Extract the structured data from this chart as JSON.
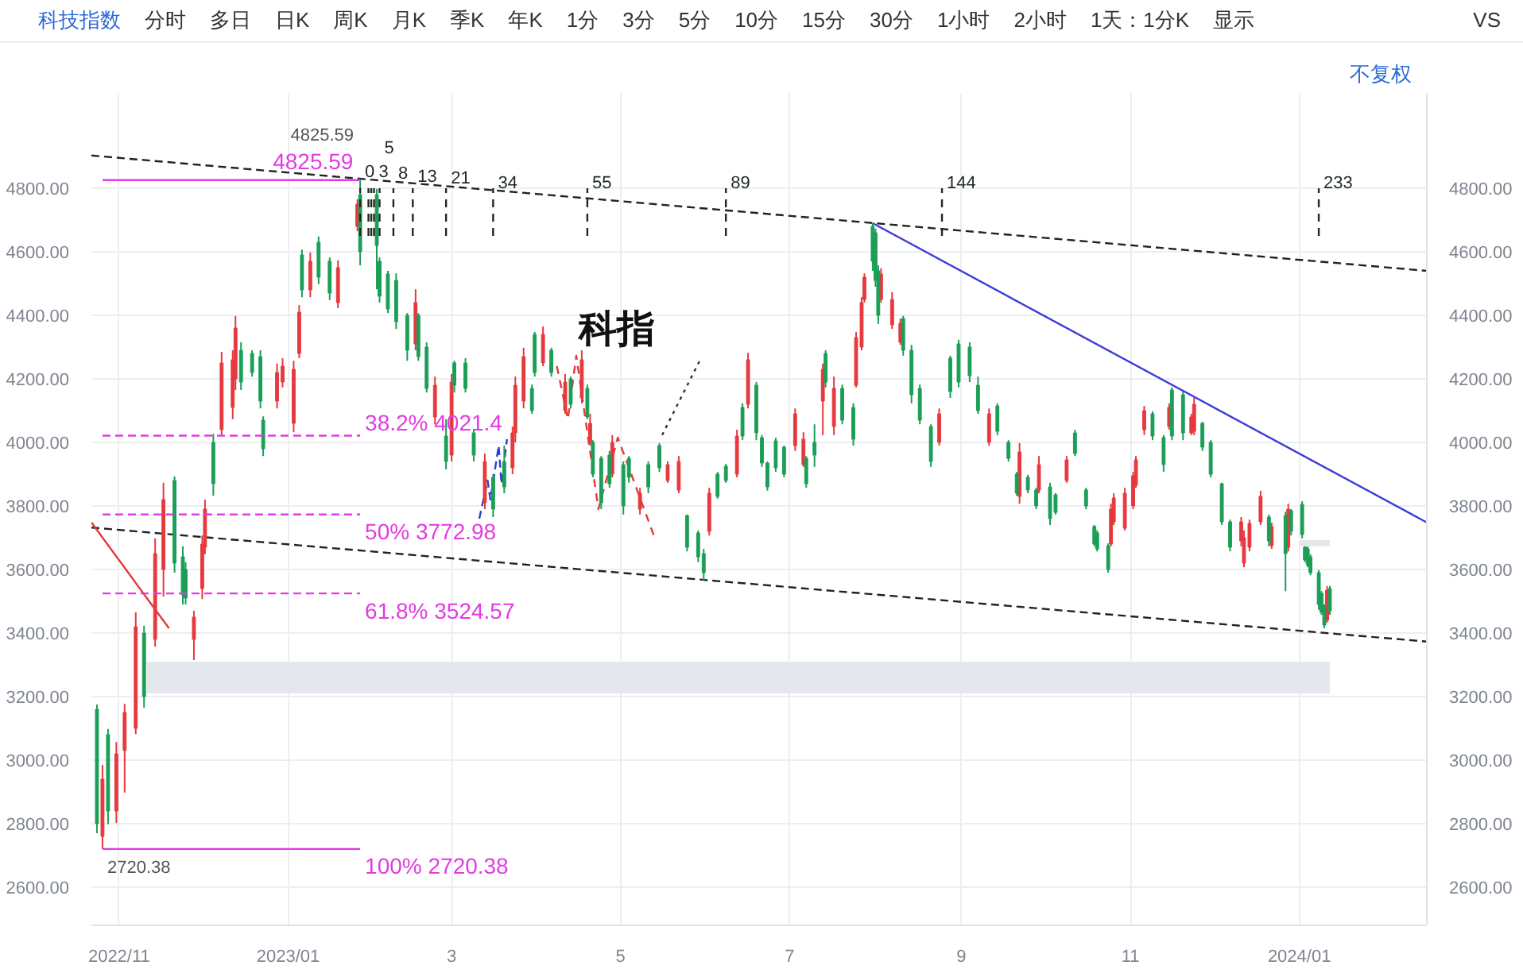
{
  "chart_data": [
    {
      "type": "other",
      "title": "科技指数",
      "annotations": [
        "分时",
        "多日",
        "日K",
        "周K",
        "月K",
        "季K",
        "年K",
        "1分",
        "3分",
        "5分",
        "10分",
        "15分",
        "30分",
        "1小时",
        "2小时",
        "1天：1分K",
        "显示",
        "VS",
        "不复权"
      ]
    },
    {
      "type": "candlestick",
      "xlim": [
        "2022-10-22",
        "2024-02-16"
      ],
      "xticks": [
        {
          "value": "2022-11-01",
          "label": "2022/11"
        },
        {
          "value": "2023-01-01",
          "label": "2023/01"
        },
        {
          "value": "2023-03-01",
          "label": "3"
        },
        {
          "value": "2023-05-01",
          "label": "5"
        },
        {
          "value": "2023-07-01",
          "label": "7"
        },
        {
          "value": "2023-09-01",
          "label": "9"
        },
        {
          "value": "2023-11-01",
          "label": "11"
        },
        {
          "value": "2024-01-01",
          "label": "2024/01"
        }
      ],
      "ylim": [
        2480,
        5100
      ],
      "yticks": [
        {
          "value": 2600,
          "label": "2600.00"
        },
        {
          "value": 2800,
          "label": "2800.00"
        },
        {
          "value": 3000,
          "label": "3000.00"
        },
        {
          "value": 3200,
          "label": "3200.00"
        },
        {
          "value": 3400,
          "label": "3400.00"
        },
        {
          "value": 3600,
          "label": "3600.00"
        },
        {
          "value": 3800,
          "label": "3800.00"
        },
        {
          "value": 4000,
          "label": "4000.00"
        },
        {
          "value": 4200,
          "label": "4200.00"
        },
        {
          "value": 4400,
          "label": "4400.00"
        },
        {
          "value": 4600,
          "label": "4600.00"
        },
        {
          "value": 4800,
          "label": "4800.00"
        }
      ],
      "y2lim": [
        2480,
        5100
      ],
      "y2ticks": [
        {
          "value": 2600,
          "label": "2600.00"
        },
        {
          "value": 2800,
          "label": "2800.00"
        },
        {
          "value": 3000,
          "label": "3000.00"
        },
        {
          "value": 3200,
          "label": "3200.00"
        },
        {
          "value": 3400,
          "label": "3400.00"
        },
        {
          "value": 3600,
          "label": "3600.00"
        },
        {
          "value": 3800,
          "label": "3800.00"
        },
        {
          "value": 4000,
          "label": "4000.00"
        },
        {
          "value": 4200,
          "label": "4200.00"
        },
        {
          "value": 4400,
          "label": "4400.00"
        },
        {
          "value": 4600,
          "label": "4600.00"
        },
        {
          "value": 4800,
          "label": "4800.00"
        }
      ],
      "grid": true,
      "annotations": [
        "科指",
        {
          "text": "4825.59",
          "x": "2023-01-27",
          "y": 4825.59
        },
        {
          "text": "2720.38",
          "x": "2022-10-26",
          "y": 2720.38
        }
      ],
      "series": [
        {
          "type": "line",
          "x": [
            "2022-11-11",
            "2024-01-12"
          ],
          "values": [
            null,
            null
          ],
          "lower": [
            3210,
            3210
          ],
          "upper": [
            3310,
            3310
          ],
          "color": "#e4e7ec"
        },
        {
          "type": "line",
          "x": [
            "2024-01-01",
            "2024-01-12"
          ],
          "values": [
            null,
            null
          ],
          "lower": [
            3673,
            3673
          ],
          "upper": [
            3693,
            3693
          ],
          "color": "#e4e7ec"
        },
        {
          "type": "line",
          "x": [
            "2022-10-22",
            "2024-02-16"
          ],
          "values": [
            4903,
            4540
          ],
          "color": "#222222",
          "line_style": "dashed"
        },
        {
          "type": "line",
          "x": [
            "2022-10-22",
            "2024-02-16"
          ],
          "values": [
            3732,
            3373
          ],
          "color": "#222222",
          "line_style": "dashed"
        },
        {
          "type": "line",
          "x": [
            "2023-07-31",
            "2024-02-16"
          ],
          "values": [
            4690,
            3748
          ],
          "color": "#3b3bd9",
          "line_style": "solid"
        },
        {
          "type": "line",
          "x": [
            "2022-10-22",
            "2022-11-19"
          ],
          "values": [
            3748,
            3415
          ],
          "color": "#e53935",
          "line_style": "solid"
        },
        {
          "type": "line",
          "x": [
            "2023-03-11",
            "2023-03-14",
            "2023-03-15",
            "2023-03-18",
            "2023-03-19",
            "2023-03-21"
          ],
          "values": [
            3760,
            3880,
            3820,
            3990,
            3870,
            4010
          ],
          "color": "#2b3fd1",
          "line_style": "dashed"
        },
        {
          "type": "line",
          "x": [
            "2023-04-08",
            "2023-04-12",
            "2023-04-15",
            "2023-04-23",
            "2023-04-30",
            "2023-05-13"
          ],
          "values": [
            4240,
            4073,
            4273,
            3790,
            4015,
            3707
          ],
          "color": "#e53935",
          "line_style": "dashed"
        },
        {
          "type": "line",
          "x": [
            "2023-05-16",
            "2023-05-30"
          ],
          "values": [
            4023,
            4265
          ],
          "color": "#333333",
          "line_style": "dotted"
        },
        {
          "type": "candlestick",
          "color": "#e6393e",
          "x": [
            "2022-10-26",
            "2022-10-31",
            "2022-11-03",
            "2022-11-07",
            "2022-11-14",
            "2022-11-17",
            "2022-11-28",
            "2022-12-01",
            "2022-12-02",
            "2022-12-08",
            "2022-12-12",
            "2022-12-13",
            "2022-12-28",
            "2022-12-30",
            "2023-01-03",
            "2023-01-05",
            "2023-01-09",
            "2023-01-19",
            "2023-01-26",
            "2023-02-16",
            "2023-02-23",
            "2023-03-01",
            "2023-03-13",
            "2023-03-23",
            "2023-03-24",
            "2023-03-27",
            "2023-04-03",
            "2023-04-11",
            "2023-04-17",
            "2023-04-20",
            "2023-04-28",
            "2023-05-08",
            "2023-05-18",
            "2023-05-22",
            "2023-06-02",
            "2023-06-12",
            "2023-06-16",
            "2023-07-03",
            "2023-07-06",
            "2023-07-13",
            "2023-07-17",
            "2023-07-25",
            "2023-07-27",
            "2023-07-28",
            "2023-08-03",
            "2023-08-07",
            "2023-08-10",
            "2023-08-24",
            "2023-09-11",
            "2023-09-22",
            "2023-09-29",
            "2023-10-09",
            "2023-10-25",
            "2023-10-26",
            "2023-10-30",
            "2023-11-02",
            "2023-11-03",
            "2023-11-06",
            "2023-11-15",
            "2023-11-23",
            "2023-11-24",
            "2023-12-11",
            "2023-12-12",
            "2023-12-14",
            "2023-12-18",
            "2023-12-22",
            "2023-12-28",
            "2024-01-11"
          ],
          "ohlc": [
            [
              2760,
              2985,
              2720.38,
              2940
            ],
            [
              2840,
              3057,
              2802,
              3020
            ],
            [
              3030,
              3177,
              2898,
              3150
            ],
            [
              3100,
              3465,
              3082,
              3420
            ],
            [
              3380,
              3698,
              3357,
              3650
            ],
            [
              3600,
              3873,
              3515,
              3820
            ],
            [
              3380,
              3470,
              3315,
              3450
            ],
            [
              3540,
              3707,
              3507,
              3680
            ],
            [
              3670,
              3820,
              3648,
              3790
            ],
            [
              4040,
              4285,
              4023,
              4250
            ],
            [
              4110,
              4290,
              4073,
              4260
            ],
            [
              4200,
              4398,
              4165,
              4360
            ],
            [
              4130,
              4248,
              4107,
              4220
            ],
            [
              4190,
              4265,
              4173,
              4240
            ],
            [
              4060,
              4257,
              4032,
              4230
            ],
            [
              4280,
              4432,
              4265,
              4410
            ],
            [
              4480,
              4598,
              4457,
              4570
            ],
            [
              4440,
              4573,
              4423,
              4550
            ],
            [
              4680,
              4765,
              4665,
              4750
            ],
            [
              4310,
              4482,
              4290,
              4440
            ],
            [
              4080,
              4207,
              4057,
              4180
            ],
            [
              3960,
              4215,
              3940,
              4190
            ],
            [
              3810,
              3965,
              3790,
              3940
            ],
            [
              3920,
              4050,
              3900,
              4030
            ],
            [
              4030,
              4207,
              4000,
              4180
            ],
            [
              4130,
              4298,
              4107,
              4270
            ],
            [
              4250,
              4365,
              4240,
              4340
            ],
            [
              4100,
              4215,
              4090,
              4190
            ],
            [
              4140,
              4290,
              4123,
              4260
            ],
            [
              4000,
              4090,
              3990,
              4060
            ],
            [
              3900,
              4023,
              3890,
              4000
            ],
            [
              3790,
              3857,
              3773,
              3840
            ],
            [
              3880,
              3940,
              3873,
              3930
            ],
            [
              3850,
              3957,
              3840,
              3940
            ],
            [
              3720,
              3857,
              3707,
              3840
            ],
            [
              3900,
              4040,
              3890,
              4020
            ],
            [
              4120,
              4282,
              4107,
              4260
            ],
            [
              3990,
              4107,
              3973,
              4090
            ],
            [
              3930,
              4032,
              3923,
              4010
            ],
            [
              4130,
              4248,
              4023,
              4230
            ],
            [
              4050,
              4207,
              4023,
              4170
            ],
            [
              4180,
              4348,
              4173,
              4330
            ],
            [
              4300,
              4457,
              4290,
              4440
            ],
            [
              4450,
              4532,
              4440,
              4520
            ],
            [
              4450,
              4548,
              4440,
              4530
            ],
            [
              4370,
              4473,
              4357,
              4450
            ],
            [
              4315,
              4390,
              4307,
              4375
            ],
            [
              4000,
              4107,
              3990,
              4090
            ],
            [
              4000,
              4107,
              3990,
              4090
            ],
            [
              3830,
              3998,
              3807,
              3970
            ],
            [
              3850,
              3957,
              3840,
              3930
            ],
            [
              3880,
              3957,
              3873,
              3945
            ],
            [
              3680,
              3807,
              3673,
              3790
            ],
            [
              3750,
              3840,
              3740,
              3825
            ],
            [
              3730,
              3857,
              3723,
              3840
            ],
            [
              3800,
              3907,
              3790,
              3895
            ],
            [
              3865,
              3957,
              3857,
              3945
            ],
            [
              4040,
              4115,
              4023,
              4100
            ],
            [
              4050,
              4123,
              4040,
              4110
            ],
            [
              4030,
              4090,
              4023,
              4080
            ],
            [
              4035,
              4140,
              4023,
              4120
            ],
            [
              3690,
              3765,
              3673,
              3750
            ],
            [
              3620,
              3723,
              3607,
              3700
            ],
            [
              3670,
              3757,
              3657,
              3745
            ],
            [
              3750,
              3848,
              3740,
              3830
            ],
            [
              3675,
              3748,
              3665,
              3735
            ],
            [
              3670,
              3807,
              3657,
              3790
            ],
            [
              3440,
              3548,
              3432,
              3535
            ]
          ]
        },
        {
          "type": "candlestick",
          "color": "#1b9e57",
          "x": [
            "2022-10-24",
            "2022-10-28",
            "2022-11-10",
            "2022-11-21",
            "2022-11-24",
            "2022-11-25",
            "2022-12-05",
            "2022-12-15",
            "2022-12-19",
            "2022-12-22",
            "2022-12-23",
            "2023-01-06",
            "2023-01-12",
            "2023-01-16",
            "2023-01-27",
            "2023-02-02",
            "2023-02-03",
            "2023-02-06",
            "2023-02-09",
            "2023-02-13",
            "2023-02-17",
            "2023-02-20",
            "2023-02-27",
            "2023-03-02",
            "2023-03-06",
            "2023-03-09",
            "2023-03-16",
            "2023-03-20",
            "2023-03-30",
            "2023-03-31",
            "2023-04-06",
            "2023-04-13",
            "2023-04-19",
            "2023-04-21",
            "2023-04-24",
            "2023-04-27",
            "2023-05-02",
            "2023-05-04",
            "2023-05-11",
            "2023-05-15",
            "2023-05-25",
            "2023-05-29",
            "2023-05-31",
            "2023-06-05",
            "2023-06-08",
            "2023-06-14",
            "2023-06-19",
            "2023-06-21",
            "2023-06-23",
            "2023-06-26",
            "2023-06-29",
            "2023-07-07",
            "2023-07-10",
            "2023-07-14",
            "2023-07-20",
            "2023-07-24",
            "2023-07-31",
            "2023-08-01",
            "2023-08-02",
            "2023-08-11",
            "2023-08-14",
            "2023-08-17",
            "2023-08-21",
            "2023-08-28",
            "2023-08-31",
            "2023-09-04",
            "2023-09-07",
            "2023-09-14",
            "2023-09-18",
            "2023-09-21",
            "2023-09-25",
            "2023-09-28",
            "2023-10-03",
            "2023-10-05",
            "2023-10-12",
            "2023-10-16",
            "2023-10-19",
            "2023-10-20",
            "2023-10-24",
            "2023-11-09",
            "2023-11-13",
            "2023-11-16",
            "2023-11-20",
            "2023-11-27",
            "2023-11-30",
            "2023-12-04",
            "2023-12-07",
            "2023-12-21",
            "2023-12-27",
            "2023-12-29",
            "2024-01-02",
            "2024-01-03",
            "2024-01-04",
            "2024-01-05",
            "2024-01-08",
            "2024-01-09",
            "2024-01-10",
            "2024-01-12"
          ],
          "ohlc": [
            [
              3160,
              3175,
              2770,
              2800
            ],
            [
              3080,
              3098,
              2798,
              2840
            ],
            [
              3400,
              3423,
              3165,
              3200
            ],
            [
              3880,
              3893,
              3590,
              3620
            ],
            [
              3640,
              3673,
              3490,
              3520
            ],
            [
              3600,
              3623,
              3490,
              3510
            ],
            [
              4000,
              4027,
              3832,
              3870
            ],
            [
              4290,
              4315,
              4165,
              4190
            ],
            [
              4280,
              4290,
              4207,
              4220
            ],
            [
              4270,
              4290,
              4107,
              4130
            ],
            [
              4070,
              4082,
              3957,
              3980
            ],
            [
              4590,
              4607,
              4457,
              4480
            ],
            [
              4630,
              4648,
              4498,
              4520
            ],
            [
              4570,
              4582,
              4448,
              4470
            ],
            [
              4780,
              4825.59,
              4557,
              4600
            ],
            [
              4780,
              4798,
              4482,
              4620
            ],
            [
              4570,
              4582,
              4440,
              4460
            ],
            [
              4530,
              4540,
              4407,
              4420
            ],
            [
              4510,
              4532,
              4357,
              4380
            ],
            [
              4400,
              4407,
              4257,
              4290
            ],
            [
              4400,
              4407,
              4257,
              4270
            ],
            [
              4300,
              4315,
              4157,
              4170
            ],
            [
              4020,
              4073,
              3915,
              3940
            ],
            [
              4250,
              4257,
              4157,
              4180
            ],
            [
              4250,
              4265,
              4157,
              4170
            ],
            [
              4030,
              4040,
              3940,
              3960
            ],
            [
              3890,
              3900,
              3765,
              3790
            ],
            [
              3940,
              3990,
              3840,
              3860
            ],
            [
              4170,
              4182,
              4090,
              4100
            ],
            [
              4340,
              4348,
              4207,
              4220
            ],
            [
              4290,
              4298,
              4207,
              4220
            ],
            [
              4200,
              4207,
              4107,
              4120
            ],
            [
              4170,
              4182,
              4073,
              4080
            ],
            [
              4000,
              4007,
              3890,
              3900
            ],
            [
              3950,
              3957,
              3790,
              3810
            ],
            [
              3960,
              3973,
              3857,
              3870
            ],
            [
              3930,
              3940,
              3773,
              3800
            ],
            [
              3950,
              3957,
              3873,
              3890
            ],
            [
              3930,
              3940,
              3840,
              3860
            ],
            [
              3990,
              3998,
              3907,
              3920
            ],
            [
              3770,
              3773,
              3657,
              3670
            ],
            [
              3715,
              3723,
              3623,
              3640
            ],
            [
              3650,
              3665,
              3565,
              3590
            ],
            [
              3900,
              3907,
              3823,
              3830
            ],
            [
              3925,
              3932,
              3873,
              3880
            ],
            [
              4110,
              4123,
              4007,
              4020
            ],
            [
              4180,
              4190,
              4007,
              4030
            ],
            [
              4015,
              4023,
              3923,
              3935
            ],
            [
              3935,
              3940,
              3848,
              3860
            ],
            [
              4005,
              4015,
              3907,
              3920
            ],
            [
              3985,
              3990,
              3890,
              3900
            ],
            [
              3950,
              3957,
              3857,
              3870
            ],
            [
              4000,
              4057,
              3923,
              3960
            ],
            [
              4280,
              4290,
              4173,
              4190
            ],
            [
              4170,
              4182,
              4057,
              4070
            ],
            [
              4110,
              4123,
              3990,
              4010
            ],
            [
              4680,
              4690,
              4540,
              4570
            ],
            [
              4660,
              4673,
              4490,
              4510
            ],
            [
              4540,
              4557,
              4373,
              4400
            ],
            [
              4390,
              4398,
              4273,
              4290
            ],
            [
              4290,
              4307,
              4123,
              4150
            ],
            [
              4170,
              4182,
              4057,
              4070
            ],
            [
              4050,
              4057,
              3923,
              3940
            ],
            [
              4265,
              4273,
              4140,
              4160
            ],
            [
              4310,
              4323,
              4173,
              4190
            ],
            [
              4300,
              4315,
              4190,
              4210
            ],
            [
              4180,
              4207,
              4090,
              4100
            ],
            [
              4115,
              4123,
              4023,
              4035
            ],
            [
              4000,
              4007,
              3940,
              3950
            ],
            [
              3900,
              3907,
              3832,
              3840
            ],
            [
              3890,
              3898,
              3840,
              3850
            ],
            [
              3850,
              3857,
              3790,
              3800
            ],
            [
              3860,
              3873,
              3740,
              3760
            ],
            [
              3835,
              3840,
              3773,
              3780
            ],
            [
              4030,
              4040,
              3957,
              3965
            ],
            [
              3850,
              3857,
              3790,
              3800
            ],
            [
              3735,
              3740,
              3673,
              3680
            ],
            [
              3715,
              3723,
              3657,
              3665
            ],
            [
              3675,
              3682,
              3590,
              3600
            ],
            [
              4090,
              4098,
              4007,
              4020
            ],
            [
              4015,
              4023,
              3907,
              3930
            ],
            [
              4165,
              4173,
              4007,
              4020
            ],
            [
              4150,
              4160,
              4007,
              4030
            ],
            [
              4060,
              4065,
              3973,
              3985
            ],
            [
              4000,
              4007,
              3890,
              3900
            ],
            [
              3870,
              3873,
              3740,
              3750
            ],
            [
              3750,
              3757,
              3657,
              3670
            ],
            [
              3765,
              3773,
              3673,
              3690
            ],
            [
              3770,
              3782,
              3532,
              3650
            ],
            [
              3785,
              3790,
              3707,
              3720
            ],
            [
              3805,
              3815,
              3698,
              3710
            ],
            [
              3670,
              3673,
              3623,
              3630
            ],
            [
              3665,
              3673,
              3607,
              3615
            ],
            [
              3640,
              3648,
              3582,
              3590
            ],
            [
              3590,
              3598,
              3473,
              3490
            ],
            [
              3525,
              3532,
              3457,
              3465
            ],
            [
              3485,
              3490,
              3415,
              3425
            ],
            [
              3540,
              3548,
              3457,
              3470
            ]
          ]
        },
        {
          "type": "line",
          "name": "0",
          "x": [
            "2023-01-27",
            "2023-01-27"
          ],
          "values": [
            4650,
            4800
          ],
          "color": "#1e2a1e",
          "line_style": "dashed"
        },
        {
          "type": "line",
          "x": [
            "2023-01-30",
            "2023-01-30"
          ],
          "values": [
            4650,
            4800
          ],
          "color": "#1e2a1e",
          "line_style": "dashed"
        },
        {
          "type": "line",
          "x": [
            "2023-01-31",
            "2023-01-31"
          ],
          "values": [
            4650,
            4800
          ],
          "color": "#1e2a1e",
          "line_style": "dashed"
        },
        {
          "type": "line",
          "name": "3",
          "x": [
            "2023-02-01",
            "2023-02-01"
          ],
          "values": [
            4650,
            4800
          ],
          "color": "#1e2a1e",
          "line_style": "dashed"
        },
        {
          "type": "line",
          "name": "5",
          "x": [
            "2023-02-03",
            "2023-02-03"
          ],
          "values": [
            4650,
            4800
          ],
          "color": "#1e2a1e",
          "line_style": "dashed"
        },
        {
          "type": "line",
          "name": "8",
          "x": [
            "2023-02-08",
            "2023-02-08"
          ],
          "values": [
            4650,
            4800
          ],
          "color": "#1e2a1e",
          "line_style": "dashed"
        },
        {
          "type": "line",
          "name": "13",
          "x": [
            "2023-02-15",
            "2023-02-15"
          ],
          "values": [
            4650,
            4800
          ],
          "color": "#1e2a1e",
          "line_style": "dashed"
        },
        {
          "type": "line",
          "name": "21",
          "x": [
            "2023-02-27",
            "2023-02-27"
          ],
          "values": [
            4650,
            4800
          ],
          "color": "#1e2a1e",
          "line_style": "dashed"
        },
        {
          "type": "line",
          "name": "34",
          "x": [
            "2023-03-16",
            "2023-03-16"
          ],
          "values": [
            4650,
            4800
          ],
          "color": "#1e2a1e",
          "line_style": "dashed"
        },
        {
          "type": "line",
          "name": "55",
          "x": [
            "2023-04-19",
            "2023-04-19"
          ],
          "values": [
            4650,
            4800
          ],
          "color": "#1e2a1e",
          "line_style": "dashed"
        },
        {
          "type": "line",
          "name": "89",
          "x": [
            "2023-06-08",
            "2023-06-08"
          ],
          "values": [
            4650,
            4800
          ],
          "color": "#1e2a1e",
          "line_style": "dashed"
        },
        {
          "type": "line",
          "name": "144",
          "x": [
            "2023-08-25",
            "2023-08-25"
          ],
          "values": [
            4650,
            4800
          ],
          "color": "#1e2a1e",
          "line_style": "dashed"
        },
        {
          "type": "line",
          "name": "233",
          "x": [
            "2024-01-08",
            "2024-01-08"
          ],
          "values": [
            4650,
            4800
          ],
          "color": "#1e2a1e",
          "line_style": "dashed"
        },
        {
          "type": "line",
          "x": [
            "2022-10-26",
            "2023-01-27"
          ],
          "values": [
            4825.59,
            4825.59
          ],
          "value_labels": [
            null,
            "4825.59"
          ],
          "color": "#e33ae3",
          "line_style": "solid"
        },
        {
          "type": "line",
          "x": [
            "2022-10-26",
            "2023-01-27"
          ],
          "values": [
            4021.4,
            4021.4
          ],
          "value_labels": [
            null,
            "38.2% 4021.4"
          ],
          "color": "#e33ae3",
          "line_style": "dashed"
        },
        {
          "type": "line",
          "x": [
            "2022-10-26",
            "2023-01-27"
          ],
          "values": [
            3772.98,
            3772.98
          ],
          "value_labels": [
            null,
            "50% 3772.98"
          ],
          "color": "#e33ae3",
          "line_style": "dashed"
        },
        {
          "type": "line",
          "x": [
            "2022-10-26",
            "2023-01-27"
          ],
          "values": [
            3524.57,
            3524.57
          ],
          "value_labels": [
            null,
            "61.8% 3524.57"
          ],
          "color": "#e33ae3",
          "line_style": "dashed"
        },
        {
          "type": "line",
          "x": [
            "2022-10-26",
            "2023-01-27"
          ],
          "values": [
            2720.38,
            2720.38
          ],
          "value_labels": [
            null,
            "100% 2720.38"
          ],
          "color": "#e33ae3",
          "line_style": "solid"
        }
      ]
    }
  ]
}
